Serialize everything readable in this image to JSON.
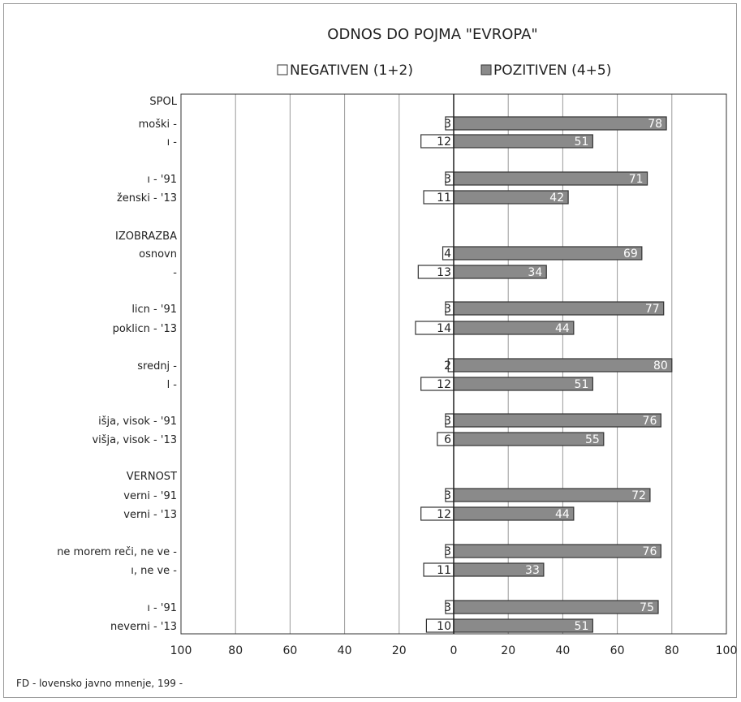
{
  "chart_data": {
    "type": "bar",
    "orientation": "horizontal",
    "title": "ODNOS DO POJMA \"EVROPA\"",
    "legend": [
      {
        "name": "NEGATIVEN (1+2)",
        "color": "#ffffff"
      },
      {
        "name": "POZITIVEN (4+5)",
        "color": "#8a8a8a"
      }
    ],
    "legend_position": "top",
    "xlim": [
      -100,
      100
    ],
    "ticks": [
      100,
      80,
      60,
      40,
      20,
      0,
      20,
      40,
      60,
      80,
      100
    ],
    "grid": true,
    "groups": [
      {
        "header": "SPOL",
        "rows": [
          {
            "label": "moški -",
            "neg": 3,
            "pos": 78
          },
          {
            "label": "ı -",
            "neg": 12,
            "pos": 51
          },
          {
            "label": "ı - '91",
            "neg": 3,
            "pos": 71
          },
          {
            "label": "ženski - '13",
            "neg": 11,
            "pos": 42
          }
        ]
      },
      {
        "header": "IZOBRAZBA",
        "rows": [
          {
            "label": "osnovn",
            "neg": 4,
            "pos": 69
          },
          {
            "label": "-",
            "neg": 13,
            "pos": 34
          },
          {
            "label": "licn - '91",
            "neg": 3,
            "pos": 77
          },
          {
            "label": "poklicn - '13",
            "neg": 14,
            "pos": 44
          },
          {
            "label": "srednj -",
            "neg": 2,
            "pos": 80
          },
          {
            "label": "l -",
            "neg": 12,
            "pos": 51
          },
          {
            "label": "išja, visok - '91",
            "neg": 3,
            "pos": 76
          },
          {
            "label": "višja, visok - '13",
            "neg": 6,
            "pos": 55
          }
        ]
      },
      {
        "header": "VERNOST",
        "rows": [
          {
            "label": "verni - '91",
            "neg": 3,
            "pos": 72
          },
          {
            "label": "verni - '13",
            "neg": 12,
            "pos": 44
          },
          {
            "label": "ne morem reči, ne ve -",
            "neg": 3,
            "pos": 76
          },
          {
            "label": "ı, ne ve -",
            "neg": 11,
            "pos": 33
          },
          {
            "label": "ı - '91",
            "neg": 3,
            "pos": 75
          },
          {
            "label": "neverni - '13",
            "neg": 10,
            "pos": 51
          }
        ]
      }
    ]
  },
  "source": "FD  -          lovensko javno mnenje, 199  -",
  "colors": {
    "positive": "#8a8a8a",
    "negative": "#ffffff",
    "stroke": "#333333",
    "grid": "#9a9a9a"
  }
}
